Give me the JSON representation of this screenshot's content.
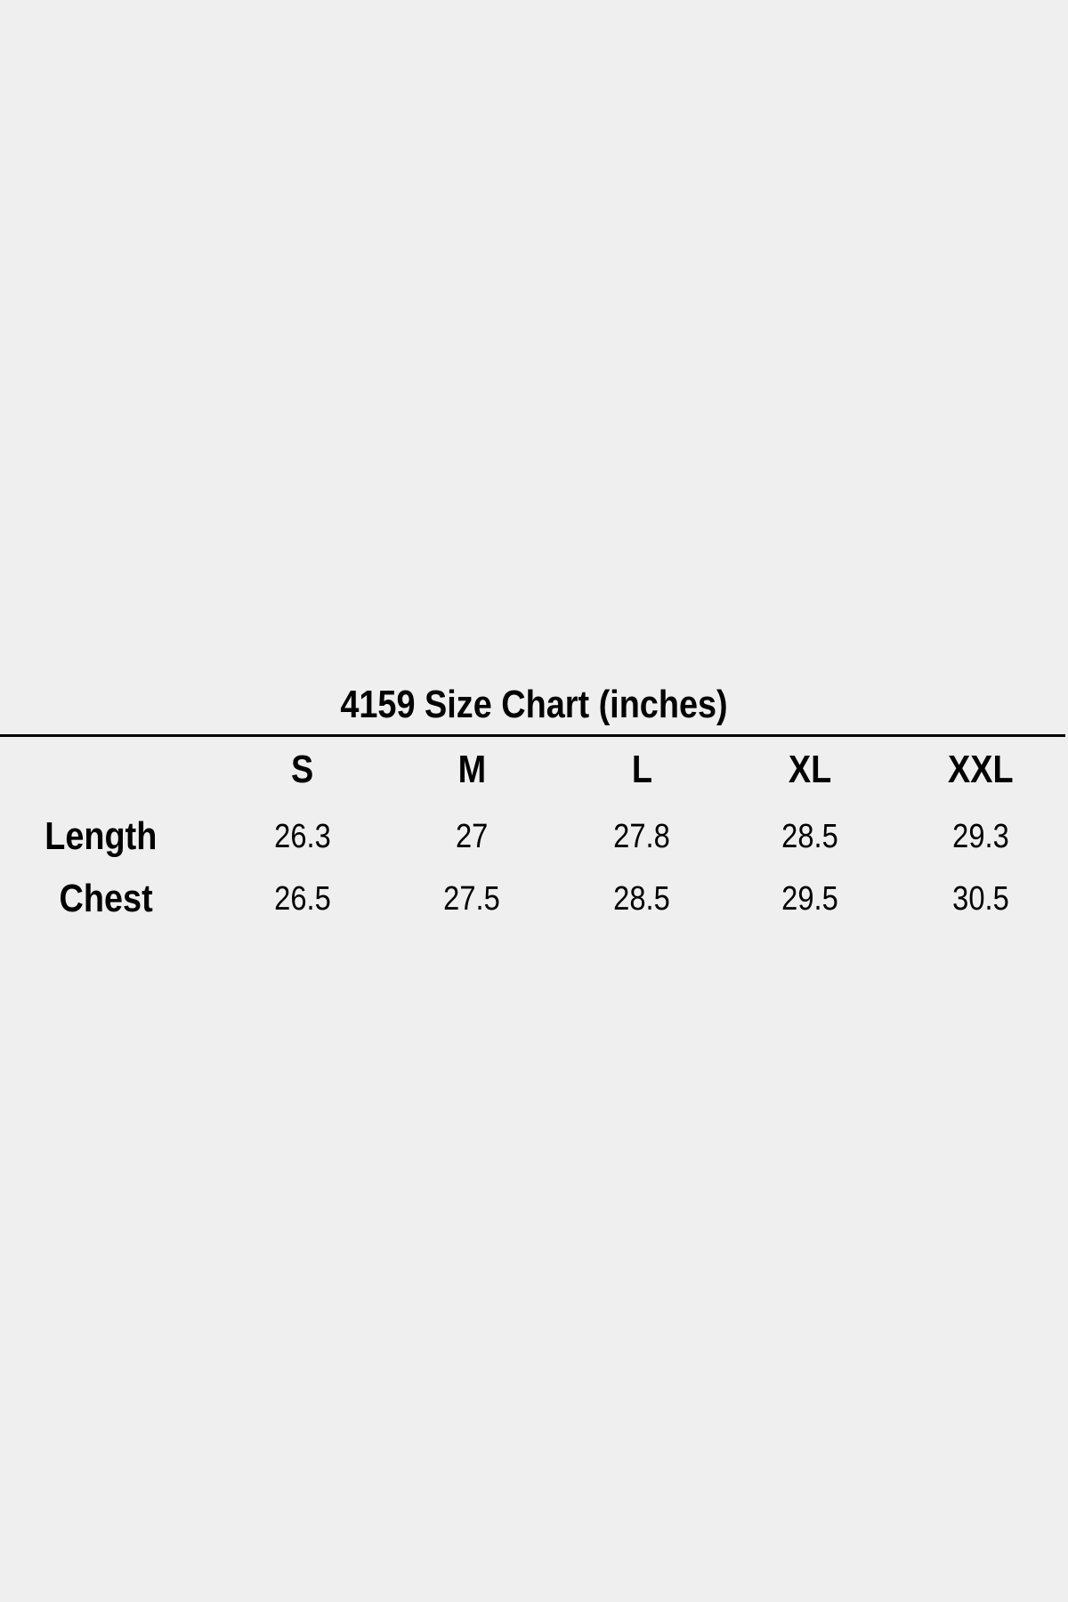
{
  "title": "4159 Size Chart (inches)",
  "table": {
    "columns": [
      "S",
      "M",
      "L",
      "XL",
      "XXL"
    ],
    "rows": [
      {
        "label": "Length",
        "values": [
          "26.3",
          "27",
          "27.8",
          "28.5",
          "29.3"
        ]
      },
      {
        "label": "Chest",
        "values": [
          "26.5",
          "27.5",
          "28.5",
          "29.5",
          "30.5"
        ]
      }
    ]
  },
  "colors": {
    "background": "#efefef",
    "text": "#000000"
  }
}
